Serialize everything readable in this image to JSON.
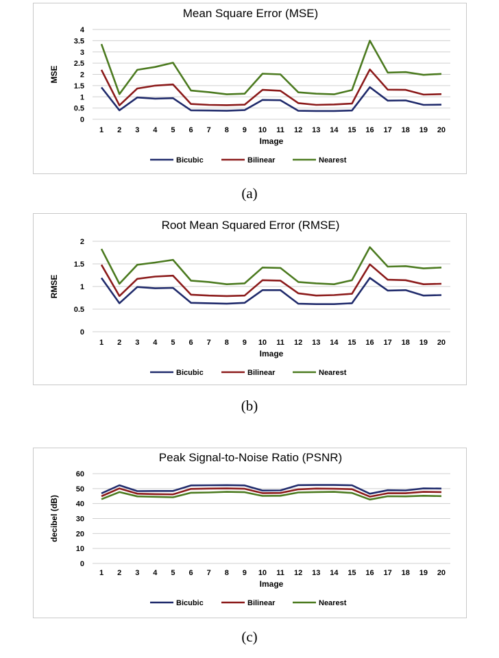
{
  "chart_data": [
    {
      "type": "line",
      "title": "Mean Square Error (MSE)",
      "xlabel": "Image",
      "ylabel": "MSE",
      "ylim": [
        0,
        4
      ],
      "yticks": [
        0,
        0.5,
        1,
        1.5,
        2,
        2.5,
        3,
        3.5,
        4
      ],
      "categories": [
        "1",
        "2",
        "3",
        "4",
        "5",
        "6",
        "7",
        "8",
        "9",
        "10",
        "11",
        "12",
        "13",
        "14",
        "15",
        "16",
        "17",
        "18",
        "19",
        "20"
      ],
      "grid": true,
      "legend": "bottom",
      "caption": "(a)",
      "series": [
        {
          "name": "Bicubic",
          "color": "#1f2a6b",
          "values": [
            1.42,
            0.4,
            0.97,
            0.92,
            0.94,
            0.4,
            0.39,
            0.38,
            0.41,
            0.86,
            0.85,
            0.38,
            0.37,
            0.37,
            0.39,
            1.43,
            0.83,
            0.84,
            0.64,
            0.65
          ]
        },
        {
          "name": "Bilinear",
          "color": "#8b1a1a",
          "values": [
            2.2,
            0.62,
            1.37,
            1.5,
            1.55,
            0.68,
            0.64,
            0.63,
            0.65,
            1.31,
            1.27,
            0.72,
            0.64,
            0.66,
            0.7,
            2.22,
            1.32,
            1.31,
            1.1,
            1.12
          ]
        },
        {
          "name": "Nearest",
          "color": "#4b7a1f",
          "values": [
            3.35,
            1.12,
            2.2,
            2.33,
            2.52,
            1.28,
            1.21,
            1.11,
            1.14,
            2.03,
            2.0,
            1.2,
            1.14,
            1.11,
            1.3,
            3.5,
            2.08,
            2.1,
            1.98,
            2.02
          ]
        }
      ]
    },
    {
      "type": "line",
      "title": "Root Mean Squared Error (RMSE)",
      "xlabel": "Image",
      "ylabel": "RMSE",
      "ylim": [
        0,
        2
      ],
      "yticks": [
        0,
        0.5,
        1,
        1.5,
        2
      ],
      "categories": [
        "1",
        "2",
        "3",
        "4",
        "5",
        "6",
        "7",
        "8",
        "9",
        "10",
        "11",
        "12",
        "13",
        "14",
        "15",
        "16",
        "17",
        "18",
        "19",
        "20"
      ],
      "grid": true,
      "legend": "bottom",
      "caption": "(b)",
      "series": [
        {
          "name": "Bicubic",
          "color": "#1f2a6b",
          "values": [
            1.19,
            0.63,
            0.99,
            0.96,
            0.97,
            0.64,
            0.63,
            0.62,
            0.64,
            0.92,
            0.92,
            0.62,
            0.61,
            0.61,
            0.63,
            1.19,
            0.91,
            0.92,
            0.8,
            0.81
          ]
        },
        {
          "name": "Bilinear",
          "color": "#8b1a1a",
          "values": [
            1.48,
            0.79,
            1.17,
            1.22,
            1.24,
            0.82,
            0.8,
            0.79,
            0.8,
            1.14,
            1.13,
            0.85,
            0.8,
            0.81,
            0.84,
            1.49,
            1.15,
            1.14,
            1.05,
            1.06
          ]
        },
        {
          "name": "Nearest",
          "color": "#4b7a1f",
          "values": [
            1.83,
            1.06,
            1.48,
            1.53,
            1.59,
            1.13,
            1.1,
            1.05,
            1.07,
            1.42,
            1.41,
            1.1,
            1.07,
            1.05,
            1.14,
            1.87,
            1.44,
            1.45,
            1.4,
            1.42
          ]
        }
      ]
    },
    {
      "type": "line",
      "title": "Peak Signal-to-Noise Ratio (PSNR)",
      "xlabel": "Image",
      "ylabel": "decibel (dB)",
      "ylim": [
        0,
        60
      ],
      "yticks": [
        0,
        10,
        20,
        30,
        40,
        50,
        60
      ],
      "categories": [
        "1",
        "2",
        "3",
        "4",
        "5",
        "6",
        "7",
        "8",
        "9",
        "10",
        "11",
        "12",
        "13",
        "14",
        "15",
        "16",
        "17",
        "18",
        "19",
        "20"
      ],
      "grid": true,
      "legend": "bottom",
      "caption": "(c)",
      "series": [
        {
          "name": "Bicubic",
          "color": "#1f2a6b",
          "values": [
            46.8,
            52.2,
            48.3,
            48.4,
            48.4,
            52.1,
            52.2,
            52.3,
            52.1,
            48.7,
            48.8,
            52.3,
            52.4,
            52.4,
            52.2,
            46.6,
            48.9,
            48.8,
            50.1,
            50.0
          ]
        },
        {
          "name": "Bilinear",
          "color": "#8b1a1a",
          "values": [
            44.9,
            50.1,
            46.6,
            46.3,
            46.1,
            49.8,
            50.0,
            50.1,
            49.9,
            47.0,
            47.1,
            49.5,
            50.0,
            49.9,
            49.6,
            44.6,
            46.9,
            46.9,
            47.8,
            47.7
          ]
        },
        {
          "name": "Nearest",
          "color": "#4b7a1f",
          "values": [
            42.9,
            47.7,
            44.8,
            44.5,
            44.2,
            47.2,
            47.4,
            47.8,
            47.6,
            45.1,
            45.2,
            47.4,
            47.7,
            47.8,
            47.1,
            42.7,
            44.9,
            44.8,
            45.2,
            45.0
          ]
        }
      ]
    }
  ]
}
